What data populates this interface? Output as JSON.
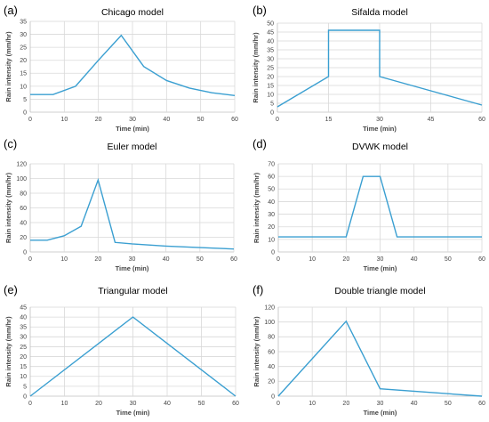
{
  "colors": {
    "series": "#3a9fd1",
    "grid": "#d9d9d9"
  },
  "chart_data": [
    {
      "type": "line",
      "panel_label": "(a)",
      "title": "Chicago model",
      "xlabel": "Time (min)",
      "ylabel": "Rain intensity (mm/hr)",
      "xlim": [
        0,
        60
      ],
      "ylim": [
        0,
        35
      ],
      "xticks": [
        0,
        10,
        20,
        30,
        40,
        50,
        60
      ],
      "yticks": [
        0,
        5,
        10,
        15,
        20,
        25,
        30,
        35
      ],
      "grid": true,
      "legend": "none",
      "x": [
        0,
        6.7,
        13.3,
        20,
        26.7,
        33.3,
        40,
        46.7,
        53.3,
        60
      ],
      "y": [
        6.8,
        6.8,
        10,
        20,
        29.6,
        17.6,
        12.2,
        9.3,
        7.5,
        6.4
      ]
    },
    {
      "type": "line",
      "panel_label": "(b)",
      "title": "Sifalda model",
      "xlabel": "Time (min)",
      "ylabel": "Rain intensity (mm/hr)",
      "xlim": [
        0,
        60
      ],
      "ylim": [
        0,
        50
      ],
      "xticks": [
        0,
        15,
        30,
        45,
        60
      ],
      "yticks": [
        0,
        5,
        10,
        15,
        20,
        25,
        30,
        35,
        40,
        45,
        50
      ],
      "grid": true,
      "legend": "none",
      "x": [
        0,
        15,
        15,
        30,
        30,
        60
      ],
      "y": [
        3,
        20,
        46,
        46,
        20,
        4
      ]
    },
    {
      "type": "line",
      "panel_label": "(c)",
      "title": "Euler model",
      "xlabel": "Time (min)",
      "ylabel": "Rain intensity (mm/hr)",
      "xlim": [
        0,
        60
      ],
      "ylim": [
        0,
        120
      ],
      "xticks": [
        0,
        10,
        20,
        30,
        40,
        50,
        60
      ],
      "yticks": [
        0,
        20,
        40,
        60,
        80,
        100,
        120
      ],
      "grid": true,
      "legend": "none",
      "x": [
        0,
        5,
        10,
        15,
        20,
        25,
        30,
        40,
        50,
        60
      ],
      "y": [
        16,
        16,
        22,
        35,
        98,
        13,
        11,
        8,
        6,
        4
      ]
    },
    {
      "type": "line",
      "panel_label": "(d)",
      "title": "DVWK model",
      "xlabel": "Time (min)",
      "ylabel": "Rain intensity (mm/hr)",
      "xlim": [
        0,
        60
      ],
      "ylim": [
        0,
        70
      ],
      "xticks": [
        0,
        10,
        20,
        30,
        40,
        50,
        60
      ],
      "yticks": [
        0,
        10,
        20,
        30,
        40,
        50,
        60,
        70
      ],
      "grid": true,
      "legend": "none",
      "x": [
        0,
        20,
        25,
        30,
        35,
        60
      ],
      "y": [
        12,
        12,
        60,
        60,
        12,
        12
      ]
    },
    {
      "type": "line",
      "panel_label": "(e)",
      "title": "Triangular model",
      "xlabel": "Time (min)",
      "ylabel": "Rain intensity (mm/hr)",
      "xlim": [
        0,
        60
      ],
      "ylim": [
        0,
        45
      ],
      "xticks": [
        0,
        10,
        20,
        30,
        40,
        50,
        60
      ],
      "yticks": [
        0,
        5,
        10,
        15,
        20,
        25,
        30,
        35,
        40,
        45
      ],
      "grid": true,
      "legend": "none",
      "x": [
        0,
        30,
        60
      ],
      "y": [
        0,
        40,
        0
      ]
    },
    {
      "type": "line",
      "panel_label": "(f)",
      "title": "Double triangle model",
      "xlabel": "Time (min)",
      "ylabel": "Rain intensity (mm/hr)",
      "xlim": [
        0,
        60
      ],
      "ylim": [
        0,
        120
      ],
      "xticks": [
        0,
        10,
        20,
        30,
        40,
        50,
        60
      ],
      "yticks": [
        0,
        20,
        40,
        60,
        80,
        100,
        120
      ],
      "grid": true,
      "legend": "none",
      "x": [
        0,
        20,
        30,
        60
      ],
      "y": [
        0,
        101,
        10,
        0
      ]
    }
  ]
}
